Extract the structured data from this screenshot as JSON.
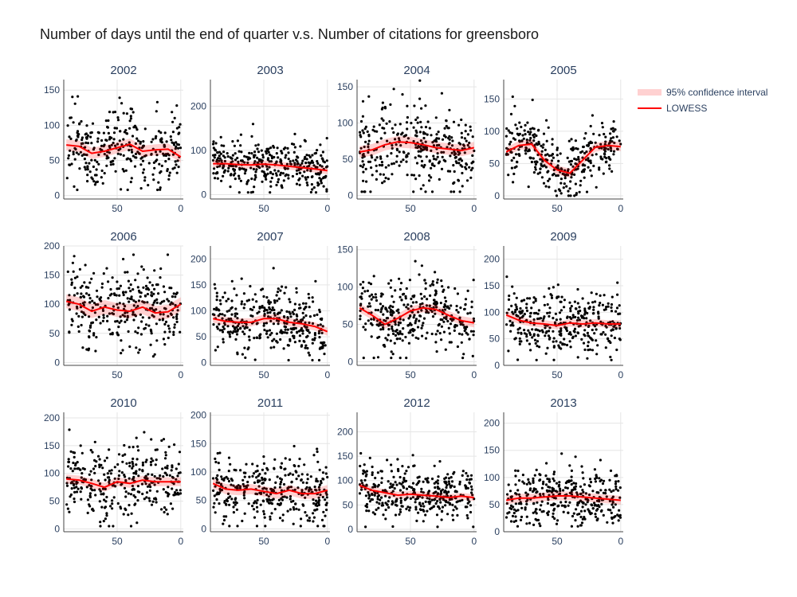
{
  "title": "Number of days until the end of quarter v.s. Number of citations for greensboro",
  "legend": {
    "band_label": "95% confidence interval",
    "line_label": "LOWESS",
    "position": "top-right"
  },
  "colors": {
    "points": "#000000",
    "lowess": "#ff0000",
    "band": "rgba(255,0,0,0.18)",
    "grid": "#e5e5e5",
    "axis": "#444444",
    "text": "#2a3f5f"
  },
  "chart_data": [
    {
      "type": "scatter",
      "title": "2002",
      "x_reversed": true,
      "xlim": [
        92,
        -2
      ],
      "x_ticks": [
        50,
        0
      ],
      "ylim": [
        -5,
        165
      ],
      "y_ticks": [
        0,
        50,
        100,
        150
      ],
      "lowess": {
        "x": [
          90,
          80,
          70,
          60,
          50,
          40,
          30,
          20,
          10,
          0
        ],
        "y": [
          72,
          70,
          60,
          63,
          68,
          73,
          63,
          65,
          66,
          55
        ]
      },
      "band_halfwidth": 8,
      "scatter_summary": {
        "n": 320,
        "y_min": 8,
        "y_max": 155,
        "noise_sd": 26
      }
    },
    {
      "type": "scatter",
      "title": "2003",
      "x_reversed": true,
      "xlim": [
        92,
        -2
      ],
      "x_ticks": [
        50,
        0
      ],
      "ylim": [
        -10,
        260
      ],
      "y_ticks": [
        0,
        100,
        200
      ],
      "lowess": {
        "x": [
          90,
          80,
          70,
          60,
          50,
          40,
          30,
          20,
          10,
          0
        ],
        "y": [
          70,
          70,
          68,
          67,
          69,
          67,
          64,
          61,
          58,
          54
        ]
      },
      "band_halfwidth": 8,
      "scatter_summary": {
        "n": 360,
        "y_min": 5,
        "y_max": 245,
        "noise_sd": 25
      }
    },
    {
      "type": "scatter",
      "title": "2004",
      "x_reversed": true,
      "xlim": [
        92,
        -2
      ],
      "x_ticks": [
        50,
        0
      ],
      "ylim": [
        -5,
        160
      ],
      "y_ticks": [
        0,
        50,
        100,
        150
      ],
      "lowess": {
        "x": [
          90,
          80,
          70,
          60,
          50,
          40,
          30,
          20,
          10,
          0
        ],
        "y": [
          60,
          63,
          70,
          74,
          73,
          70,
          66,
          64,
          62,
          66
        ]
      },
      "band_halfwidth": 8,
      "scatter_summary": {
        "n": 340,
        "y_min": 5,
        "y_max": 165,
        "noise_sd": 28
      }
    },
    {
      "type": "scatter",
      "title": "2005",
      "x_reversed": true,
      "xlim": [
        92,
        -2
      ],
      "x_ticks": [
        50,
        0
      ],
      "ylim": [
        -5,
        180
      ],
      "y_ticks": [
        0,
        50,
        100,
        150
      ],
      "lowess": {
        "x": [
          90,
          80,
          70,
          60,
          50,
          40,
          30,
          20,
          10,
          0
        ],
        "y": [
          68,
          78,
          80,
          55,
          40,
          35,
          55,
          75,
          78,
          76
        ]
      },
      "band_halfwidth": 7,
      "scatter_summary": {
        "n": 340,
        "y_min": 0,
        "y_max": 178,
        "noise_sd": 24
      }
    },
    {
      "type": "scatter",
      "title": "2006",
      "x_reversed": true,
      "xlim": [
        92,
        -2
      ],
      "x_ticks": [
        50,
        0
      ],
      "ylim": [
        -5,
        200
      ],
      "y_ticks": [
        0,
        50,
        100,
        150,
        200
      ],
      "lowess": {
        "x": [
          90,
          80,
          70,
          60,
          50,
          40,
          30,
          20,
          10,
          0
        ],
        "y": [
          105,
          100,
          88,
          95,
          90,
          88,
          95,
          85,
          87,
          100
        ]
      },
      "band_halfwidth": 12,
      "scatter_summary": {
        "n": 320,
        "y_min": 0,
        "y_max": 185,
        "noise_sd": 32
      }
    },
    {
      "type": "scatter",
      "title": "2007",
      "x_reversed": true,
      "xlim": [
        92,
        -2
      ],
      "x_ticks": [
        50,
        0
      ],
      "ylim": [
        -5,
        225
      ],
      "y_ticks": [
        0,
        50,
        100,
        150,
        200
      ],
      "lowess": {
        "x": [
          90,
          80,
          70,
          60,
          50,
          40,
          30,
          20,
          10,
          0
        ],
        "y": [
          85,
          80,
          78,
          78,
          85,
          85,
          78,
          75,
          70,
          60
        ]
      },
      "band_halfwidth": 8,
      "scatter_summary": {
        "n": 360,
        "y_min": 5,
        "y_max": 210,
        "noise_sd": 30
      }
    },
    {
      "type": "scatter",
      "title": "2008",
      "x_reversed": true,
      "xlim": [
        92,
        -2
      ],
      "x_ticks": [
        50,
        0
      ],
      "ylim": [
        -5,
        155
      ],
      "y_ticks": [
        0,
        50,
        100,
        150
      ],
      "lowess": {
        "x": [
          90,
          80,
          70,
          60,
          50,
          40,
          30,
          20,
          10,
          0
        ],
        "y": [
          72,
          62,
          50,
          58,
          68,
          72,
          70,
          62,
          55,
          52
        ]
      },
      "band_halfwidth": 6,
      "scatter_summary": {
        "n": 360,
        "y_min": 5,
        "y_max": 145,
        "noise_sd": 24
      }
    },
    {
      "type": "scatter",
      "title": "2009",
      "x_reversed": true,
      "xlim": [
        92,
        -2
      ],
      "x_ticks": [
        50,
        0
      ],
      "ylim": [
        0,
        225
      ],
      "y_ticks": [
        0,
        50,
        100,
        150,
        200
      ],
      "lowess": {
        "x": [
          90,
          80,
          70,
          60,
          50,
          40,
          30,
          20,
          10,
          0
        ],
        "y": [
          95,
          85,
          80,
          78,
          75,
          80,
          78,
          80,
          78,
          78
        ]
      },
      "band_halfwidth": 7,
      "scatter_summary": {
        "n": 360,
        "y_min": 10,
        "y_max": 210,
        "noise_sd": 28
      }
    },
    {
      "type": "scatter",
      "title": "2010",
      "x_reversed": true,
      "xlim": [
        92,
        -2
      ],
      "x_ticks": [
        50,
        0
      ],
      "ylim": [
        -5,
        210
      ],
      "y_ticks": [
        0,
        50,
        100,
        150,
        200
      ],
      "lowess": {
        "x": [
          90,
          80,
          70,
          60,
          50,
          40,
          30,
          20,
          10,
          0
        ],
        "y": [
          90,
          88,
          82,
          75,
          85,
          82,
          88,
          85,
          85,
          85
        ]
      },
      "band_halfwidth": 8,
      "scatter_summary": {
        "n": 330,
        "y_min": 5,
        "y_max": 200,
        "noise_sd": 32
      }
    },
    {
      "type": "scatter",
      "title": "2011",
      "x_reversed": true,
      "xlim": [
        92,
        -2
      ],
      "x_ticks": [
        50,
        0
      ],
      "ylim": [
        -5,
        205
      ],
      "y_ticks": [
        0,
        50,
        100,
        150,
        200
      ],
      "lowess": {
        "x": [
          90,
          80,
          70,
          60,
          50,
          40,
          30,
          20,
          10,
          0
        ],
        "y": [
          80,
          70,
          68,
          70,
          66,
          62,
          68,
          62,
          62,
          68
        ]
      },
      "band_halfwidth": 9,
      "scatter_summary": {
        "n": 350,
        "y_min": 5,
        "y_max": 190,
        "noise_sd": 30
      }
    },
    {
      "type": "scatter",
      "title": "2012",
      "x_reversed": true,
      "xlim": [
        92,
        -2
      ],
      "x_ticks": [
        50,
        0
      ],
      "ylim": [
        -5,
        240
      ],
      "y_ticks": [
        0,
        50,
        100,
        150,
        200
      ],
      "lowess": {
        "x": [
          90,
          80,
          70,
          60,
          50,
          40,
          30,
          20,
          10,
          0
        ],
        "y": [
          90,
          80,
          75,
          70,
          72,
          70,
          68,
          65,
          68,
          65
        ]
      },
      "band_halfwidth": 7,
      "scatter_summary": {
        "n": 360,
        "y_min": 5,
        "y_max": 222,
        "noise_sd": 28
      }
    },
    {
      "type": "scatter",
      "title": "2013",
      "x_reversed": true,
      "xlim": [
        92,
        -2
      ],
      "x_ticks": [
        50,
        0
      ],
      "ylim": [
        0,
        220
      ],
      "y_ticks": [
        0,
        50,
        100,
        150,
        200
      ],
      "lowess": {
        "x": [
          90,
          80,
          70,
          60,
          50,
          40,
          30,
          20,
          10,
          0
        ],
        "y": [
          58,
          62,
          62,
          64,
          66,
          66,
          64,
          62,
          60,
          58
        ]
      },
      "band_halfwidth": 8,
      "scatter_summary": {
        "n": 360,
        "y_min": 10,
        "y_max": 205,
        "noise_sd": 28
      }
    }
  ]
}
